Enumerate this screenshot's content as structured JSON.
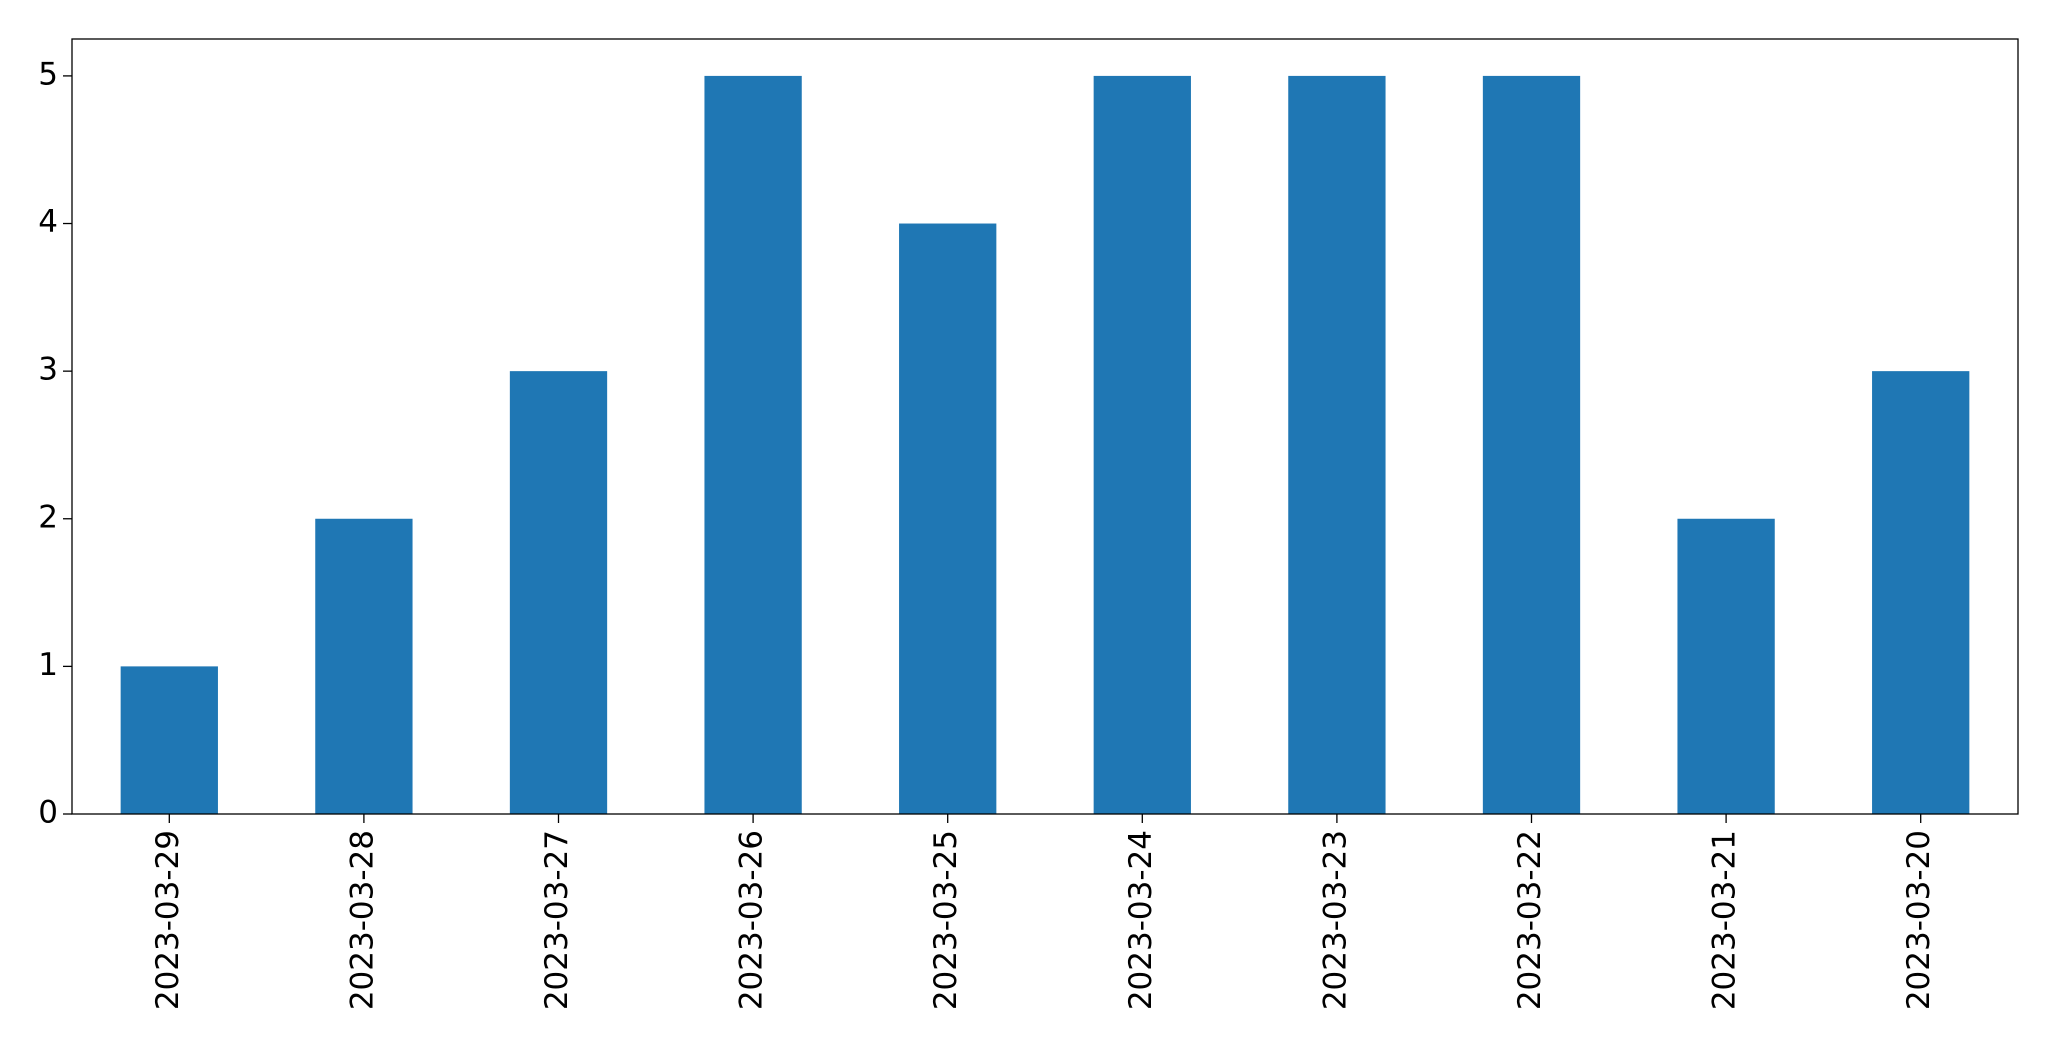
{
  "chart_data": {
    "type": "bar",
    "categories": [
      "2023-03-29",
      "2023-03-28",
      "2023-03-27",
      "2023-03-26",
      "2023-03-25",
      "2023-03-24",
      "2023-03-23",
      "2023-03-22",
      "2023-03-21",
      "2023-03-20"
    ],
    "values": [
      1,
      2,
      3,
      5,
      4,
      5,
      5,
      5,
      2,
      3
    ],
    "color": "#1f77b4",
    "ylim": [
      0,
      5.25
    ],
    "yticks": [
      0,
      1,
      2,
      3,
      4,
      5
    ],
    "grid": false
  }
}
